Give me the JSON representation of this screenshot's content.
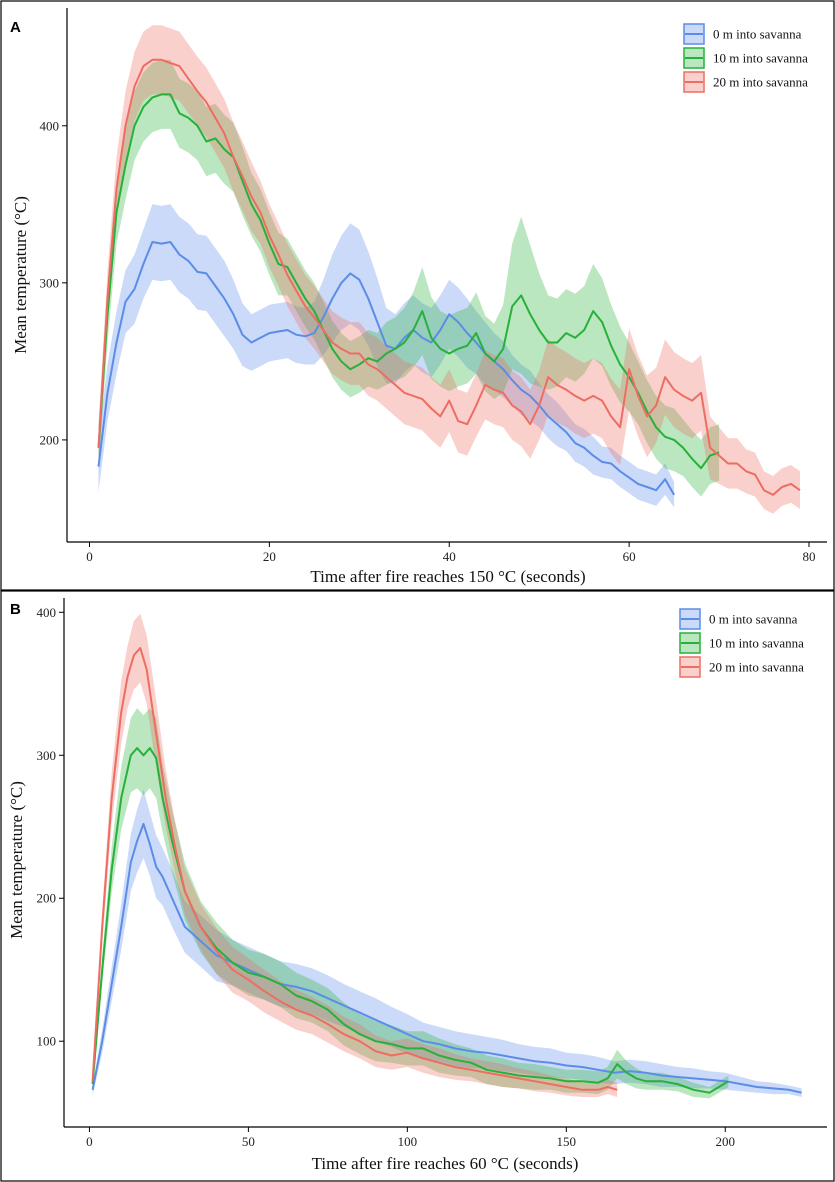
{
  "chart_data": [
    {
      "panel": "A",
      "type": "line",
      "title": "",
      "xlabel": "Time after fire reaches 150 °C (seconds)",
      "ylabel": "Mean temperature (°C)",
      "xlim": [
        -2.5,
        82
      ],
      "ylim": [
        135,
        475
      ],
      "xticks": [
        0,
        20,
        40,
        60,
        80
      ],
      "yticks": [
        200,
        300,
        400
      ],
      "legend_position": "top-right",
      "series": [
        {
          "name": "0 m into savanna",
          "color": "#5b8de8",
          "x": [
            1,
            2,
            3,
            4,
            5,
            6,
            7,
            8,
            9,
            10,
            11,
            12,
            13,
            14,
            15,
            16,
            17,
            18,
            19,
            20,
            21,
            22,
            23,
            24,
            25,
            26,
            27,
            28,
            29,
            30,
            31,
            32,
            33,
            34,
            35,
            36,
            37,
            38,
            39,
            40,
            41,
            42,
            43,
            44,
            45,
            46,
            47,
            48,
            49,
            50,
            51,
            52,
            53,
            54,
            55,
            56,
            57,
            58,
            59,
            60,
            61,
            62,
            63,
            64,
            65
          ],
          "y": [
            183,
            230,
            262,
            288,
            296,
            312,
            326,
            325,
            326,
            318,
            314,
            307,
            306,
            298,
            290,
            280,
            267,
            262,
            265,
            268,
            269,
            270,
            267,
            266,
            268,
            278,
            290,
            300,
            306,
            302,
            290,
            275,
            260,
            258,
            265,
            270,
            265,
            262,
            270,
            280,
            275,
            268,
            262,
            255,
            250,
            245,
            238,
            232,
            228,
            222,
            215,
            210,
            205,
            198,
            195,
            190,
            186,
            185,
            180,
            176,
            172,
            170,
            168,
            175,
            165
          ],
          "band": [
            16,
            18,
            20,
            20,
            22,
            22,
            24,
            24,
            24,
            24,
            24,
            24,
            24,
            24,
            24,
            22,
            20,
            18,
            18,
            18,
            18,
            18,
            18,
            18,
            20,
            24,
            28,
            30,
            32,
            32,
            30,
            28,
            24,
            22,
            22,
            22,
            22,
            22,
            22,
            22,
            22,
            22,
            20,
            20,
            18,
            18,
            16,
            16,
            16,
            14,
            14,
            14,
            12,
            12,
            12,
            12,
            10,
            10,
            10,
            10,
            10,
            10,
            10,
            10,
            8
          ]
        },
        {
          "name": "10 m into savanna",
          "color": "#27b03a",
          "x": [
            1,
            2,
            3,
            4,
            5,
            6,
            7,
            8,
            9,
            10,
            11,
            12,
            13,
            14,
            15,
            16,
            17,
            18,
            19,
            20,
            21,
            22,
            23,
            24,
            25,
            26,
            27,
            28,
            29,
            30,
            31,
            32,
            33,
            34,
            35,
            36,
            37,
            38,
            39,
            40,
            41,
            42,
            43,
            44,
            45,
            46,
            47,
            48,
            49,
            50,
            51,
            52,
            53,
            54,
            55,
            56,
            57,
            58,
            59,
            60,
            61,
            62,
            63,
            64,
            65,
            66,
            67,
            68,
            69,
            70
          ],
          "y": [
            195,
            280,
            345,
            375,
            400,
            412,
            418,
            420,
            420,
            408,
            405,
            400,
            390,
            392,
            385,
            380,
            365,
            350,
            340,
            325,
            312,
            310,
            300,
            290,
            282,
            270,
            258,
            250,
            245,
            248,
            252,
            250,
            255,
            258,
            262,
            270,
            282,
            265,
            258,
            255,
            258,
            260,
            268,
            255,
            250,
            258,
            285,
            292,
            280,
            270,
            262,
            262,
            268,
            265,
            270,
            282,
            275,
            260,
            248,
            240,
            230,
            218,
            208,
            202,
            200,
            195,
            188,
            182,
            190,
            192
          ],
          "band": [
            14,
            18,
            20,
            22,
            22,
            22,
            22,
            22,
            22,
            22,
            22,
            22,
            22,
            22,
            22,
            22,
            22,
            20,
            20,
            20,
            20,
            18,
            18,
            18,
            18,
            18,
            18,
            18,
            18,
            18,
            18,
            18,
            20,
            20,
            22,
            24,
            28,
            26,
            24,
            24,
            24,
            24,
            26,
            24,
            24,
            28,
            40,
            50,
            44,
            36,
            30,
            28,
            28,
            28,
            28,
            30,
            28,
            26,
            24,
            22,
            20,
            20,
            20,
            20,
            20,
            18,
            18,
            18,
            18,
            18
          ]
        },
        {
          "name": "20 m into savanna",
          "color": "#ee6d62",
          "x": [
            1,
            2,
            3,
            4,
            5,
            6,
            7,
            8,
            9,
            10,
            11,
            12,
            13,
            14,
            15,
            16,
            17,
            18,
            19,
            20,
            21,
            22,
            23,
            24,
            25,
            26,
            27,
            28,
            29,
            30,
            31,
            32,
            33,
            34,
            35,
            36,
            37,
            38,
            39,
            40,
            41,
            42,
            43,
            44,
            45,
            46,
            47,
            48,
            49,
            50,
            51,
            52,
            53,
            54,
            55,
            56,
            57,
            58,
            59,
            60,
            61,
            62,
            63,
            64,
            65,
            66,
            67,
            68,
            69,
            70,
            71,
            72,
            73,
            74,
            75,
            76,
            77,
            78,
            79
          ],
          "y": [
            195,
            290,
            360,
            400,
            425,
            438,
            442,
            442,
            440,
            438,
            430,
            422,
            415,
            405,
            395,
            380,
            368,
            355,
            345,
            330,
            318,
            305,
            295,
            285,
            278,
            270,
            262,
            258,
            255,
            255,
            248,
            245,
            240,
            235,
            230,
            228,
            226,
            220,
            215,
            225,
            212,
            210,
            222,
            235,
            232,
            230,
            222,
            218,
            210,
            222,
            240,
            235,
            232,
            228,
            225,
            228,
            225,
            215,
            208,
            245,
            228,
            215,
            222,
            240,
            232,
            228,
            225,
            230,
            195,
            190,
            185,
            185,
            180,
            178,
            168,
            165,
            170,
            172,
            168
          ],
          "band": [
            14,
            18,
            20,
            22,
            22,
            22,
            22,
            22,
            22,
            22,
            22,
            22,
            22,
            22,
            22,
            22,
            22,
            22,
            20,
            20,
            20,
            20,
            20,
            20,
            20,
            20,
            20,
            20,
            20,
            20,
            20,
            20,
            20,
            20,
            20,
            20,
            20,
            20,
            20,
            20,
            20,
            20,
            20,
            22,
            22,
            22,
            22,
            22,
            22,
            22,
            24,
            24,
            24,
            24,
            24,
            24,
            24,
            24,
            24,
            26,
            26,
            26,
            24,
            24,
            24,
            24,
            24,
            24,
            20,
            18,
            16,
            16,
            14,
            14,
            12,
            12,
            12,
            12,
            12
          ]
        }
      ]
    },
    {
      "panel": "B",
      "type": "line",
      "title": "",
      "xlabel": "Time after fire reaches 60 °C (seconds)",
      "ylabel": "Mean temperature (°C)",
      "xlim": [
        -8,
        232
      ],
      "ylim": [
        40,
        410
      ],
      "xticks": [
        0,
        50,
        100,
        150,
        200
      ],
      "yticks": [
        100,
        200,
        300,
        400
      ],
      "legend_position": "top-right",
      "series": [
        {
          "name": "0 m into savanna",
          "color": "#5b8de8",
          "x": [
            1,
            4,
            7,
            10,
            13,
            15,
            17,
            19,
            21,
            23,
            26,
            30,
            35,
            40,
            45,
            50,
            55,
            60,
            65,
            70,
            75,
            80,
            85,
            90,
            95,
            100,
            105,
            110,
            115,
            120,
            125,
            130,
            135,
            140,
            145,
            150,
            155,
            160,
            165,
            170,
            175,
            180,
            185,
            190,
            195,
            200,
            205,
            210,
            215,
            220,
            224
          ],
          "y": [
            66,
            100,
            140,
            180,
            225,
            240,
            252,
            238,
            222,
            215,
            200,
            180,
            170,
            160,
            155,
            150,
            145,
            140,
            138,
            135,
            130,
            125,
            120,
            115,
            110,
            105,
            100,
            98,
            95,
            93,
            92,
            90,
            88,
            86,
            85,
            83,
            82,
            80,
            78,
            79,
            78,
            76,
            75,
            74,
            73,
            72,
            70,
            68,
            67,
            66,
            64
          ],
          "band": [
            4,
            8,
            12,
            16,
            20,
            22,
            24,
            22,
            22,
            20,
            20,
            18,
            18,
            18,
            16,
            16,
            16,
            16,
            16,
            16,
            16,
            15,
            15,
            15,
            14,
            14,
            13,
            12,
            12,
            12,
            11,
            11,
            10,
            10,
            10,
            9,
            9,
            9,
            8,
            8,
            8,
            8,
            7,
            7,
            6,
            6,
            5,
            4,
            4,
            3,
            3
          ]
        },
        {
          "name": "10 m into savanna",
          "color": "#27b03a",
          "x": [
            1,
            4,
            7,
            10,
            13,
            15,
            17,
            19,
            21,
            23,
            26,
            30,
            35,
            40,
            45,
            50,
            55,
            60,
            65,
            70,
            75,
            80,
            85,
            90,
            95,
            100,
            105,
            110,
            115,
            120,
            125,
            130,
            135,
            140,
            145,
            150,
            155,
            160,
            163,
            166,
            169,
            172,
            175,
            180,
            185,
            190,
            195,
            198,
            201
          ],
          "y": [
            70,
            150,
            220,
            270,
            300,
            305,
            300,
            305,
            298,
            270,
            240,
            205,
            180,
            165,
            155,
            148,
            145,
            140,
            132,
            128,
            122,
            112,
            105,
            100,
            98,
            95,
            95,
            90,
            87,
            85,
            80,
            78,
            76,
            75,
            74,
            72,
            72,
            71,
            74,
            84,
            78,
            74,
            72,
            72,
            70,
            66,
            64,
            68,
            72
          ],
          "band": [
            4,
            10,
            16,
            22,
            26,
            28,
            28,
            28,
            28,
            24,
            22,
            20,
            18,
            18,
            16,
            16,
            16,
            16,
            16,
            15,
            15,
            15,
            14,
            14,
            13,
            12,
            12,
            12,
            11,
            10,
            10,
            10,
            9,
            9,
            8,
            8,
            8,
            8,
            8,
            10,
            8,
            7,
            6,
            6,
            5,
            5,
            4,
            4,
            4
          ]
        },
        {
          "name": "20 m into savanna",
          "color": "#ee6d62",
          "x": [
            1,
            4,
            7,
            10,
            12,
            14,
            16,
            18,
            20,
            22,
            24,
            27,
            30,
            35,
            40,
            45,
            50,
            55,
            60,
            65,
            70,
            75,
            80,
            85,
            90,
            95,
            100,
            105,
            110,
            115,
            120,
            125,
            130,
            135,
            140,
            145,
            150,
            155,
            160,
            163,
            166
          ],
          "y": [
            72,
            180,
            270,
            330,
            355,
            370,
            375,
            360,
            330,
            300,
            270,
            235,
            205,
            180,
            163,
            150,
            143,
            135,
            128,
            122,
            118,
            112,
            105,
            100,
            93,
            90,
            92,
            88,
            85,
            82,
            80,
            78,
            76,
            74,
            72,
            70,
            68,
            66,
            66,
            68,
            66
          ],
          "band": [
            4,
            12,
            18,
            22,
            22,
            24,
            24,
            24,
            24,
            22,
            20,
            18,
            16,
            16,
            16,
            16,
            15,
            15,
            14,
            14,
            13,
            13,
            12,
            12,
            11,
            10,
            10,
            10,
            10,
            9,
            8,
            8,
            8,
            7,
            7,
            6,
            6,
            5,
            5,
            5,
            5
          ]
        }
      ]
    }
  ]
}
